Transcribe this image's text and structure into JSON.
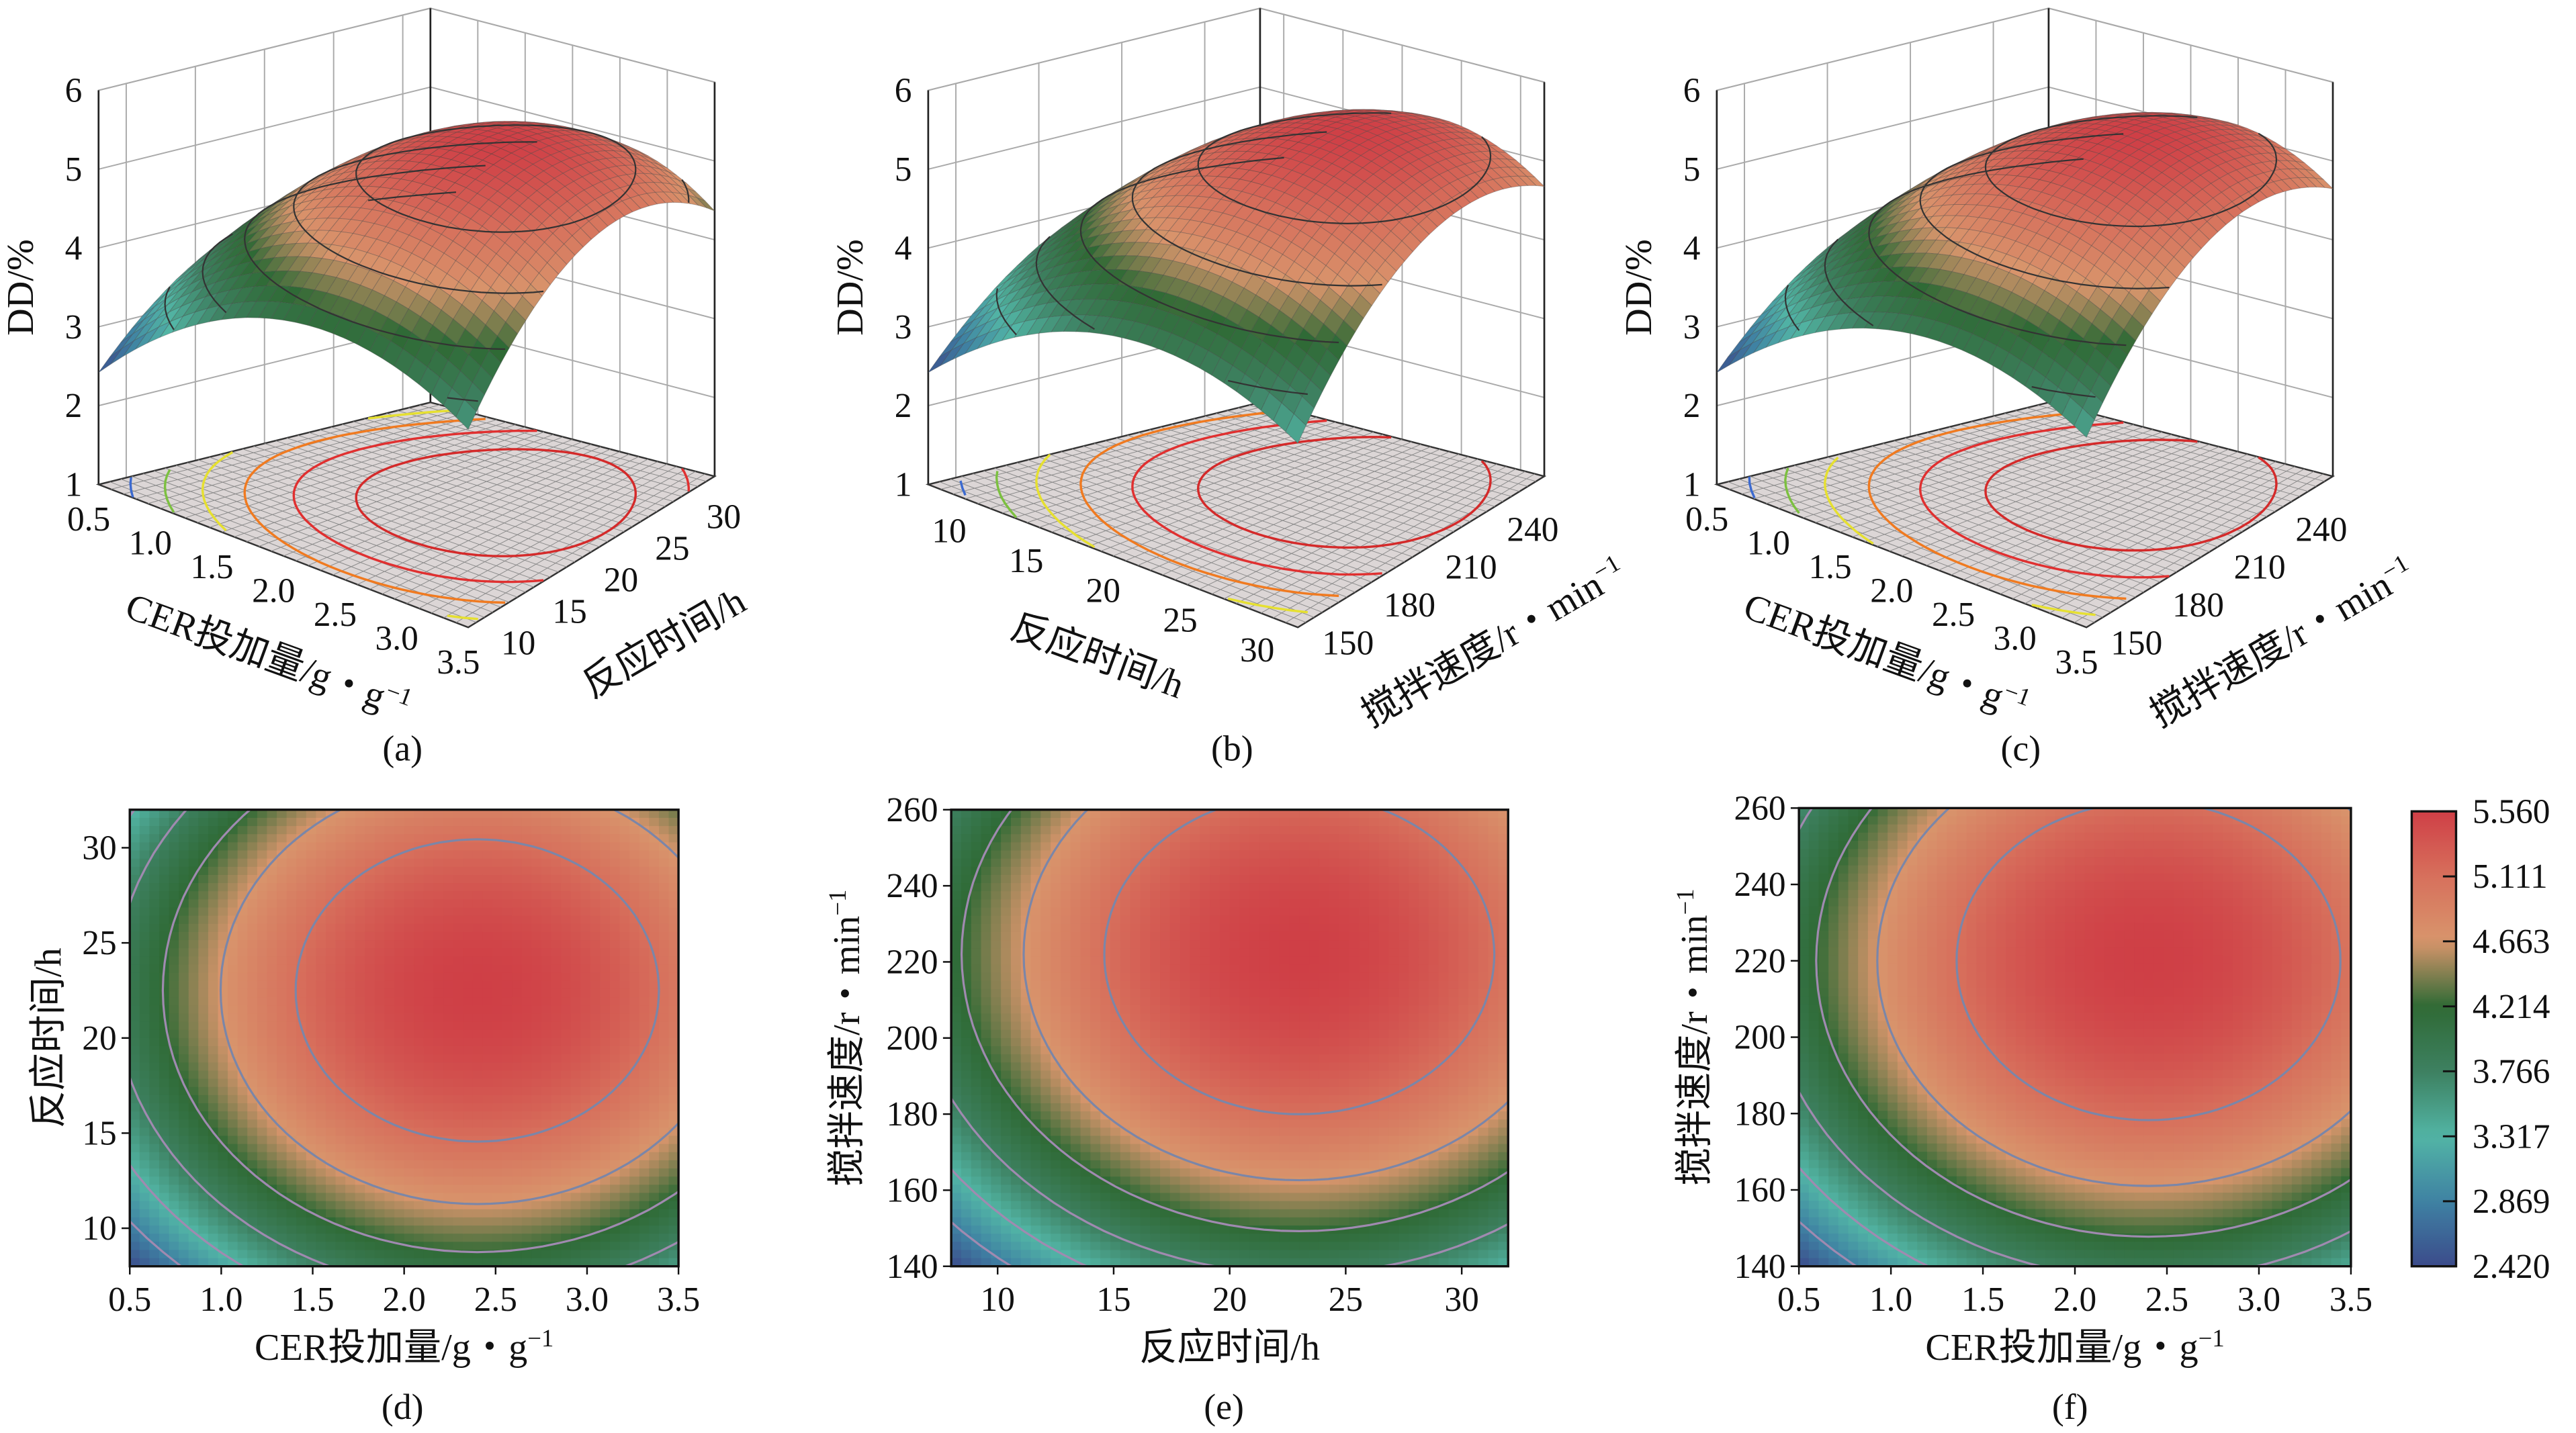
{
  "colorbar": {
    "ticks": [
      5.56,
      5.111,
      4.663,
      4.214,
      3.766,
      3.317,
      2.869,
      2.42
    ],
    "tick_labels": [
      "5.560",
      "5.111",
      "4.663",
      "4.214",
      "3.766",
      "3.317",
      "2.869",
      "2.420"
    ],
    "colors": [
      "#cf3f46",
      "#d7705c",
      "#d8956c",
      "#2f6a35",
      "#3d8060",
      "#52b5a5",
      "#3f82a3",
      "#3b4b8b"
    ]
  },
  "chart_data": [
    {
      "panel": "a",
      "type": "surface3d",
      "caption": "(a)",
      "zlabel": "DD/%",
      "xlabel": "CER投加量/g・g",
      "xlabel_sup": "−1",
      "ylabel": "反应时间/h",
      "ylabel_sup": "",
      "xlim": [
        0.5,
        3.5
      ],
      "ylim": [
        8,
        32
      ],
      "zlim": [
        1,
        6
      ],
      "xticks": [
        0.5,
        1.0,
        1.5,
        2.0,
        2.5,
        3.0,
        3.5
      ],
      "xtick_labels": [
        "0.5",
        "1.0",
        "1.5",
        "2.0",
        "2.5",
        "3.0",
        "3.5"
      ],
      "yticks": [
        10,
        15,
        20,
        25,
        30
      ],
      "ytick_labels": [
        "10",
        "15",
        "20",
        "25",
        "30"
      ],
      "zticks": [
        1,
        2,
        3,
        4,
        5,
        6
      ],
      "ztick_labels": [
        "1",
        "2",
        "3",
        "4",
        "5",
        "6"
      ],
      "optimum": {
        "x": 2.4,
        "y": 22.5,
        "z": 5.56
      },
      "corner_min": 2.42
    },
    {
      "panel": "b",
      "type": "surface3d",
      "caption": "(b)",
      "zlabel": "DD/%",
      "xlabel": "反应时间/h",
      "xlabel_sup": "",
      "ylabel": "搅拌速度/r・min",
      "ylabel_sup": "−1",
      "xlim": [
        8,
        32
      ],
      "ylim": [
        140,
        260
      ],
      "zlim": [
        1,
        6
      ],
      "xticks": [
        10,
        15,
        20,
        25,
        30
      ],
      "xtick_labels": [
        "10",
        "15",
        "20",
        "25",
        "30"
      ],
      "yticks": [
        150,
        180,
        210,
        240
      ],
      "ytick_labels": [
        "150",
        "180",
        "210",
        "240"
      ],
      "zticks": [
        1,
        2,
        3,
        4,
        5,
        6
      ],
      "ztick_labels": [
        "1",
        "2",
        "3",
        "4",
        "5",
        "6"
      ],
      "optimum": {
        "x": 23,
        "y": 222,
        "z": 5.56
      },
      "corner_min": 2.42
    },
    {
      "panel": "c",
      "type": "surface3d",
      "caption": "(c)",
      "zlabel": "DD/%",
      "xlabel": "CER投加量/g・g",
      "xlabel_sup": "−1",
      "ylabel": "搅拌速度/r・min",
      "ylabel_sup": "−1",
      "xlim": [
        0.5,
        3.5
      ],
      "ylim": [
        140,
        260
      ],
      "zlim": [
        1,
        6
      ],
      "xticks": [
        0.5,
        1.0,
        1.5,
        2.0,
        2.5,
        3.0,
        3.5
      ],
      "xtick_labels": [
        "0.5",
        "1.0",
        "1.5",
        "2.0",
        "2.5",
        "3.0",
        "3.5"
      ],
      "yticks": [
        150,
        180,
        210,
        240
      ],
      "ytick_labels": [
        "150",
        "180",
        "210",
        "240"
      ],
      "zticks": [
        1,
        2,
        3,
        4,
        5,
        6
      ],
      "ztick_labels": [
        "1",
        "2",
        "3",
        "4",
        "5",
        "6"
      ],
      "optimum": {
        "x": 2.4,
        "y": 220,
        "z": 5.56
      },
      "corner_min": 2.42
    },
    {
      "panel": "d",
      "type": "contour",
      "caption": "(d)",
      "xlabel": "CER投加量/g・g",
      "xlabel_sup": "−1",
      "ylabel": "反应时间/h",
      "ylabel_sup": "",
      "xlim": [
        0.5,
        3.5
      ],
      "ylim": [
        8,
        32
      ],
      "xticks": [
        0.5,
        1.0,
        1.5,
        2.0,
        2.5,
        3.0,
        3.5
      ],
      "xtick_labels": [
        "0.5",
        "1.0",
        "1.5",
        "2.0",
        "2.5",
        "3.0",
        "3.5"
      ],
      "yticks": [
        10,
        15,
        20,
        25,
        30
      ],
      "ytick_labels": [
        "10",
        "15",
        "20",
        "25",
        "30"
      ],
      "contour_levels": [
        5.111,
        4.663,
        4.214,
        3.766,
        3.317,
        2.869
      ],
      "optimum": {
        "x": 2.4,
        "y": 22.5,
        "z": 5.56
      },
      "corner_min": 2.42
    },
    {
      "panel": "e",
      "type": "contour",
      "caption": "(e)",
      "xlabel": "反应时间/h",
      "xlabel_sup": "",
      "ylabel": "搅拌速度/r・min",
      "ylabel_sup": "−1",
      "xlim": [
        8,
        32
      ],
      "ylim": [
        140,
        260
      ],
      "xticks": [
        10,
        15,
        20,
        25,
        30
      ],
      "xtick_labels": [
        "10",
        "15",
        "20",
        "25",
        "30"
      ],
      "yticks": [
        140,
        160,
        180,
        200,
        220,
        240,
        260
      ],
      "ytick_labels": [
        "140",
        "160",
        "180",
        "200",
        "220",
        "240",
        "260"
      ],
      "contour_levels": [
        5.111,
        4.663,
        4.214,
        3.766,
        3.317,
        2.869
      ],
      "optimum": {
        "x": 23,
        "y": 222,
        "z": 5.56
      },
      "corner_min": 2.42
    },
    {
      "panel": "f",
      "type": "contour",
      "caption": "(f)",
      "xlabel": "CER投加量/g・g",
      "xlabel_sup": "−1",
      "ylabel": "搅拌速度/r・min",
      "ylabel_sup": "−1",
      "xlim": [
        0.5,
        3.5
      ],
      "ylim": [
        140,
        260
      ],
      "xticks": [
        0.5,
        1.0,
        1.5,
        2.0,
        2.5,
        3.0,
        3.5
      ],
      "xtick_labels": [
        "0.5",
        "1.0",
        "1.5",
        "2.0",
        "2.5",
        "3.0",
        "3.5"
      ],
      "yticks": [
        140,
        160,
        180,
        200,
        220,
        240,
        260
      ],
      "ytick_labels": [
        "140",
        "160",
        "180",
        "200",
        "220",
        "240",
        "260"
      ],
      "contour_levels": [
        5.111,
        4.663,
        4.214,
        3.766,
        3.317,
        2.869
      ],
      "optimum": {
        "x": 2.4,
        "y": 220,
        "z": 5.56
      },
      "corner_min": 2.42
    }
  ]
}
